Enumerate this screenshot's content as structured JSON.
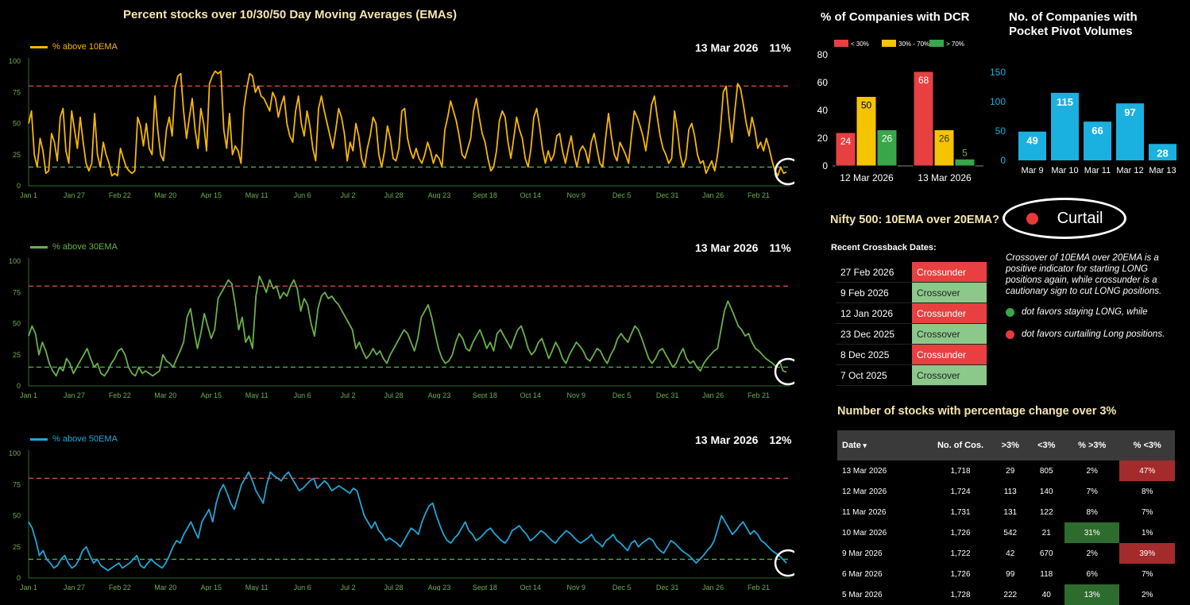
{
  "colors": {
    "ema10": "#f5b700",
    "ema30": "#6ab04c",
    "ema50": "#1ea7d6",
    "red_line": "#d9534f",
    "green_line": "#4caf50",
    "axis_text": "#6ab04c",
    "dcr_low": "#e84040",
    "dcr_mid": "#f5c400",
    "dcr_high": "#3aa64a",
    "pp_bar": "#1ab0e0"
  },
  "main_title": "Percent stocks over 10/30/50 Day Moving Averages (EMAs)",
  "panels": [
    {
      "legend": "% above 10EMA",
      "date": "13 Mar 2026",
      "value": "11%",
      "color_key": "ema10"
    },
    {
      "legend": "% above 30EMA",
      "date": "13 Mar 2026",
      "value": "11%",
      "color_key": "ema30"
    },
    {
      "legend": "% above 50EMA",
      "date": "13 Mar 2026",
      "value": "12%",
      "color_key": "ema50"
    }
  ],
  "chart_data": [
    {
      "type": "line",
      "series": [
        {
          "name": "% above 10EMA",
          "values": [
            50,
            60,
            25,
            15,
            38,
            28,
            10,
            12,
            42,
            35,
            20,
            55,
            62,
            28,
            18,
            60,
            45,
            30,
            55,
            35,
            18,
            12,
            18,
            58,
            25,
            15,
            35,
            25,
            18,
            8,
            10,
            8,
            30,
            22,
            15,
            12,
            10,
            12,
            55,
            48,
            32,
            50,
            30,
            25,
            72,
            45,
            25,
            20,
            45,
            55,
            40,
            78,
            88,
            90,
            60,
            38,
            55,
            70,
            45,
            30,
            62,
            50,
            28,
            82,
            88,
            92,
            90,
            92,
            45,
            30,
            58,
            25,
            32,
            28,
            18,
            62,
            78,
            90,
            88,
            75,
            80,
            72,
            70,
            65,
            60,
            75,
            70,
            55,
            65,
            72,
            50,
            40,
            35,
            60,
            72,
            50,
            40,
            60,
            48,
            30,
            20,
            62,
            72,
            60,
            50,
            40,
            30,
            45,
            62,
            55,
            42,
            20,
            35,
            28,
            50,
            40,
            22,
            15,
            30,
            40,
            55,
            50,
            25,
            15,
            28,
            48,
            38,
            22,
            20,
            30,
            60,
            62,
            38,
            28,
            22,
            30,
            22,
            18,
            25,
            35,
            28,
            18,
            25,
            22,
            15,
            45,
            55,
            68,
            60,
            52,
            40,
            25,
            22,
            30,
            38,
            60,
            70,
            55,
            42,
            35,
            22,
            12,
            15,
            28,
            52,
            60,
            55,
            35,
            22,
            38,
            55,
            45,
            38,
            22,
            15,
            30,
            55,
            62,
            48,
            30,
            18,
            28,
            20,
            25,
            40,
            42,
            28,
            18,
            30,
            40,
            25,
            15,
            28,
            32,
            28,
            18,
            35,
            42,
            30,
            18,
            15,
            38,
            58,
            40,
            25,
            20,
            35,
            30,
            25,
            18,
            40,
            60,
            55,
            48,
            40,
            28,
            45,
            65,
            72,
            55,
            40,
            30,
            25,
            18,
            22,
            60,
            45,
            25,
            15,
            22,
            45,
            50,
            40,
            25,
            18,
            20,
            10,
            15,
            20,
            12,
            25,
            45,
            75,
            80,
            55,
            35,
            60,
            82,
            78,
            65,
            50,
            40,
            55,
            45,
            30,
            35,
            28,
            38,
            30,
            20,
            12,
            8,
            15,
            10,
            11
          ]
        }
      ],
      "ylim": [
        0,
        100
      ],
      "ref_lines": [
        80,
        15
      ],
      "x_ticks": [
        "Jan 1",
        "Jan 27",
        "Feb 22",
        "Mar 20",
        "Apr 15",
        "May 11",
        "Jun 6",
        "Jul 2",
        "Jul 28",
        "Aug 23",
        "Sept 18",
        "Oct 14",
        "Nov 9",
        "Dec 5",
        "Dec 31",
        "Jan 26",
        "Feb 21"
      ],
      "y_ticks": [
        0,
        25,
        50,
        75,
        100
      ]
    },
    {
      "type": "line",
      "series": [
        {
          "name": "% above 30EMA",
          "values": [
            40,
            48,
            42,
            25,
            35,
            28,
            18,
            12,
            8,
            15,
            12,
            22,
            18,
            10,
            15,
            20,
            25,
            30,
            22,
            15,
            18,
            10,
            8,
            12,
            18,
            22,
            28,
            30,
            25,
            15,
            10,
            8,
            15,
            10,
            12,
            10,
            8,
            10,
            12,
            25,
            20,
            18,
            15,
            22,
            28,
            35,
            55,
            62,
            45,
            30,
            42,
            58,
            48,
            38,
            45,
            70,
            75,
            80,
            85,
            82,
            65,
            45,
            55,
            35,
            40,
            30,
            72,
            88,
            82,
            75,
            85,
            78,
            80,
            70,
            75,
            72,
            80,
            85,
            78,
            60,
            70,
            65,
            50,
            40,
            62,
            72,
            75,
            70,
            72,
            68,
            65,
            60,
            55,
            50,
            45,
            30,
            35,
            28,
            22,
            25,
            30,
            25,
            28,
            22,
            18,
            25,
            30,
            35,
            40,
            45,
            42,
            35,
            28,
            38,
            55,
            60,
            65,
            55,
            42,
            30,
            22,
            18,
            20,
            25,
            35,
            42,
            38,
            30,
            28,
            35,
            40,
            45,
            38,
            30,
            35,
            28,
            42,
            45,
            40,
            35,
            30,
            38,
            45,
            48,
            40,
            30,
            25,
            28,
            35,
            38,
            30,
            22,
            28,
            35,
            30,
            22,
            18,
            25,
            30,
            35,
            32,
            28,
            22,
            20,
            25,
            30,
            28,
            22,
            18,
            25,
            30,
            38,
            42,
            38,
            35,
            42,
            48,
            45,
            38,
            30,
            22,
            18,
            22,
            28,
            30,
            25,
            20,
            15,
            18,
            25,
            30,
            22,
            18,
            20,
            15,
            12,
            18,
            22,
            25,
            28,
            30,
            45,
            60,
            68,
            62,
            55,
            48,
            45,
            40,
            42,
            35,
            30,
            28,
            25,
            22,
            20,
            18,
            15,
            20,
            12,
            11
          ]
        }
      ],
      "ylim": [
        0,
        100
      ],
      "ref_lines": [
        80,
        15
      ],
      "x_ticks": [
        "Jan 1",
        "Jan 27",
        "Feb 22",
        "Mar 20",
        "Apr 15",
        "May 11",
        "Jun 6",
        "Jul 2",
        "Jul 28",
        "Aug 23",
        "Sept 18",
        "Oct 14",
        "Nov 9",
        "Dec 5",
        "Dec 31",
        "Jan 26",
        "Feb 21"
      ],
      "y_ticks": [
        0,
        25,
        50,
        75,
        100
      ]
    },
    {
      "type": "line",
      "series": [
        {
          "name": "% above 50EMA",
          "values": [
            45,
            40,
            30,
            18,
            22,
            15,
            12,
            8,
            10,
            15,
            18,
            12,
            8,
            10,
            15,
            22,
            25,
            18,
            12,
            15,
            10,
            8,
            6,
            8,
            10,
            12,
            8,
            10,
            12,
            15,
            18,
            10,
            8,
            12,
            15,
            12,
            10,
            8,
            12,
            18,
            25,
            30,
            28,
            35,
            40,
            45,
            38,
            32,
            45,
            50,
            55,
            45,
            60,
            70,
            75,
            68,
            60,
            55,
            65,
            75,
            80,
            85,
            78,
            70,
            65,
            60,
            75,
            85,
            82,
            80,
            78,
            82,
            85,
            80,
            75,
            70,
            72,
            75,
            78,
            80,
            72,
            75,
            78,
            75,
            70,
            72,
            74,
            72,
            70,
            68,
            72,
            70,
            60,
            50,
            45,
            40,
            45,
            38,
            35,
            30,
            32,
            30,
            28,
            25,
            30,
            35,
            40,
            38,
            35,
            45,
            52,
            58,
            60,
            50,
            42,
            35,
            30,
            28,
            32,
            35,
            40,
            45,
            38,
            35,
            30,
            32,
            35,
            38,
            40,
            36,
            33,
            30,
            28,
            32,
            38,
            40,
            42,
            38,
            35,
            30,
            32,
            35,
            38,
            36,
            33,
            30,
            28,
            32,
            35,
            38,
            36,
            33,
            30,
            28,
            30,
            32,
            35,
            30,
            28,
            25,
            30,
            32,
            35,
            30,
            28,
            25,
            22,
            28,
            30,
            25,
            28,
            30,
            32,
            30,
            25,
            22,
            20,
            25,
            30,
            28,
            25,
            22,
            20,
            18,
            15,
            12,
            15,
            18,
            22,
            25,
            30,
            40,
            50,
            45,
            40,
            35,
            38,
            42,
            45,
            40,
            35,
            38,
            35,
            30,
            28,
            25,
            22,
            20,
            18,
            15,
            12
          ]
        }
      ],
      "ylim": [
        0,
        100
      ],
      "ref_lines": [
        80,
        15
      ],
      "x_ticks": [
        "Jan 1",
        "Jan 27",
        "Feb 22",
        "Mar 20",
        "Apr 15",
        "May 11",
        "Jun 6",
        "Jul 2",
        "Jul 28",
        "Aug 23",
        "Sept 18",
        "Oct 14",
        "Nov 9",
        "Dec 5",
        "Dec 31",
        "Jan 26",
        "Feb 21"
      ],
      "y_ticks": [
        0,
        25,
        50,
        75,
        100
      ]
    },
    {
      "type": "bar",
      "title": "% of Companies with DCR",
      "categories": [
        "12 Mar 2026",
        "13 Mar 2026"
      ],
      "series": [
        {
          "name": "< 30%",
          "values": [
            24,
            68
          ]
        },
        {
          "name": "30% - 70%",
          "values": [
            50,
            26
          ]
        },
        {
          "name": "> 70%",
          "values": [
            26,
            5
          ]
        }
      ],
      "ylim": [
        0,
        80
      ],
      "y_ticks": [
        0,
        20,
        40,
        60,
        80
      ],
      "legend": "top"
    },
    {
      "type": "bar",
      "title": "No. of Companies with Pocket Pivot Volumes",
      "categories": [
        "Mar 9",
        "Mar 10",
        "Mar 11",
        "Mar 12",
        "Mar 13"
      ],
      "values": [
        49,
        115,
        66,
        97,
        28
      ],
      "ylim": [
        0,
        150
      ],
      "y_ticks": [
        0,
        50,
        100,
        150
      ]
    }
  ],
  "nifty": {
    "title": "Nifty 500: 10EMA over 20EMA?",
    "status": "Curtail",
    "crossback_title": "Recent Crossback Dates:",
    "crossbacks": [
      {
        "date": "27 Feb 2026",
        "type": "Crossunder"
      },
      {
        "date": "9 Feb 2026",
        "type": "Crossover"
      },
      {
        "date": "12 Jan 2026",
        "type": "Crossunder"
      },
      {
        "date": "23 Dec 2025",
        "type": "Crossover"
      },
      {
        "date": "8 Dec 2025",
        "type": "Crossunder"
      },
      {
        "date": "7 Oct 2025",
        "type": "Crossover"
      }
    ],
    "note": "Crossover of 10EMA over 20EMA is a positive indicator for starting LONG positions again, while crossunder is a cautionary sign to cut LONG positions.",
    "green_note": "dot favors staying LONG, while",
    "red_note": "dot favors curtailing Long positions."
  },
  "change_table": {
    "title": "Number of stocks with percentage change over 3%",
    "headers": [
      "Date",
      "No. of Cos.",
      ">3%",
      "<3%",
      "% >3%",
      "% <3%"
    ],
    "sort_icon": "sort-down-icon",
    "rows": [
      [
        "13 Mar 2026",
        "1,718",
        "29",
        "805",
        "2%",
        "47%"
      ],
      [
        "12 Mar 2026",
        "1,724",
        "113",
        "140",
        "7%",
        "8%"
      ],
      [
        "11 Mar 2026",
        "1,731",
        "131",
        "122",
        "8%",
        "7%"
      ],
      [
        "10 Mar 2026",
        "1,726",
        "542",
        "21",
        "31%",
        "1%"
      ],
      [
        "9 Mar 2026",
        "1,722",
        "42",
        "670",
        "2%",
        "39%"
      ],
      [
        "6 Mar 2026",
        "1,726",
        "99",
        "118",
        "6%",
        "7%"
      ],
      [
        "5 Mar 2026",
        "1,728",
        "222",
        "40",
        "13%",
        "2%"
      ]
    ],
    "highlights": {
      "0-5": "red",
      "3-4": "green",
      "4-5": "red",
      "6-4": "green"
    }
  }
}
